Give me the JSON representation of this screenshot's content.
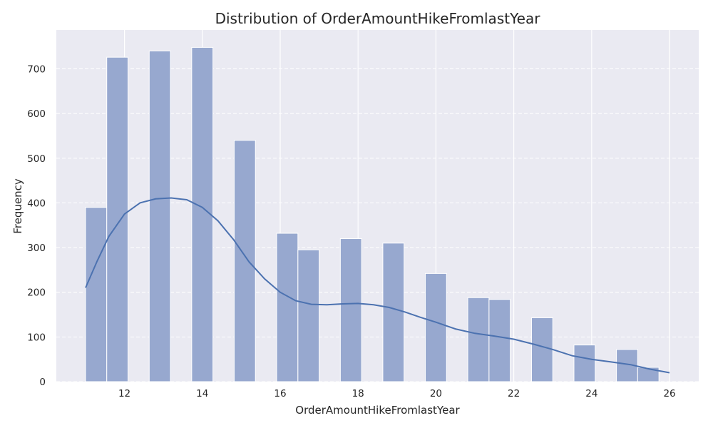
{
  "chart_data": {
    "type": "bar",
    "title": "Distribution of OrderAmountHikeFromlastYear",
    "xlabel": "OrderAmountHikeFromlastYear",
    "ylabel": "Frequency",
    "xlim": [
      10.25,
      26.75
    ],
    "ylim": [
      0,
      787
    ],
    "x_ticks": [
      12,
      14,
      16,
      18,
      20,
      22,
      24,
      26
    ],
    "y_ticks": [
      0,
      100,
      200,
      300,
      400,
      500,
      600,
      700
    ],
    "grid": true,
    "bin_width": 0.5454545,
    "bins": [
      {
        "x0": 11.0,
        "count": 390
      },
      {
        "x0": 11.545,
        "count": 726
      },
      {
        "x0": 12.636,
        "count": 740
      },
      {
        "x0": 13.727,
        "count": 748
      },
      {
        "x0": 14.818,
        "count": 540
      },
      {
        "x0": 15.909,
        "count": 332
      },
      {
        "x0": 16.455,
        "count": 295
      },
      {
        "x0": 17.545,
        "count": 320
      },
      {
        "x0": 18.636,
        "count": 310
      },
      {
        "x0": 19.727,
        "count": 242
      },
      {
        "x0": 20.818,
        "count": 188
      },
      {
        "x0": 21.364,
        "count": 184
      },
      {
        "x0": 22.455,
        "count": 143
      },
      {
        "x0": 23.545,
        "count": 82
      },
      {
        "x0": 24.636,
        "count": 72
      },
      {
        "x0": 25.182,
        "count": 32
      }
    ],
    "kde": {
      "x": [
        11.0,
        11.3,
        11.6,
        12.0,
        12.4,
        12.8,
        13.2,
        13.6,
        14.0,
        14.4,
        14.8,
        15.2,
        15.6,
        16.0,
        16.4,
        16.8,
        17.2,
        17.6,
        18.0,
        18.4,
        18.8,
        19.2,
        19.6,
        20.0,
        20.5,
        21.0,
        21.5,
        22.0,
        22.5,
        23.0,
        23.5,
        24.0,
        24.5,
        25.0,
        25.5,
        26.0
      ],
      "y": [
        210,
        270,
        325,
        375,
        400,
        409,
        411,
        407,
        390,
        360,
        318,
        268,
        230,
        200,
        181,
        173,
        172,
        174,
        175,
        172,
        166,
        156,
        144,
        133,
        118,
        108,
        102,
        95,
        84,
        72,
        58,
        50,
        44,
        38,
        28,
        20
      ]
    },
    "colors": {
      "bar_fill": "#97a8cf",
      "bar_edge": "#ffffff",
      "kde_line": "#4c72b0",
      "plot_bg": "#eaeaf2",
      "grid": "#ffffff"
    }
  }
}
